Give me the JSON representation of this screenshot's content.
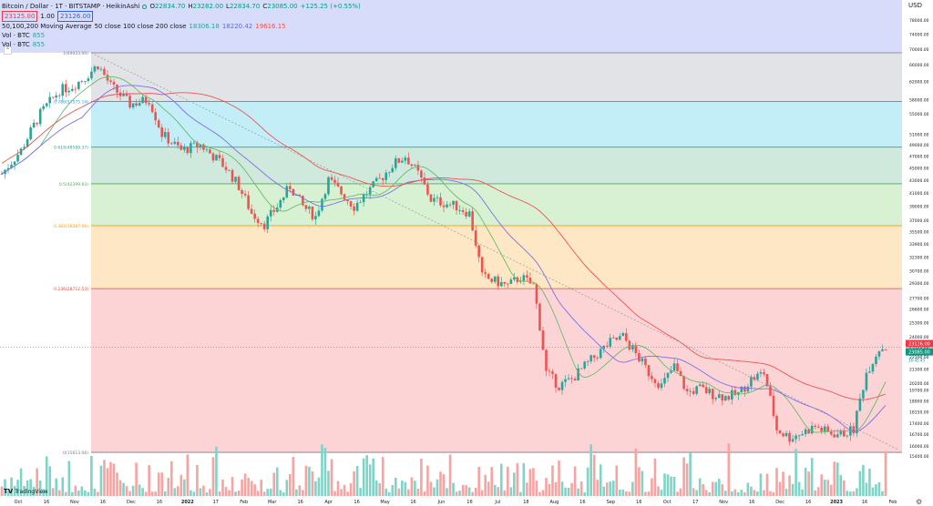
{
  "legend": {
    "symbol": "Bitcoin / Dollar · 1T · BITSTAMP · HeikinAshi",
    "o_label": "O",
    "o_value": "22834.70",
    "h_label": "H",
    "h_value": "23282.00",
    "l_label": "L",
    "l_value": "22834.70",
    "c_label": "C",
    "c_value": "23085.00",
    "change": "+125.25 (+0.55%)",
    "bid": "23125.00",
    "spread": "1.00",
    "ask": "23126.00",
    "ma_name": "50,100,200 Moving Average",
    "ma_params": "50 close 100 close 200 close",
    "ma50": "18306.18",
    "ma100": "18220.42",
    "ma200": "19616.15",
    "vol1_label": "Vol · BTC",
    "vol1_value": "855",
    "vol2_label": "Vol · BTC",
    "vol2_value": "855"
  },
  "currency": "USD",
  "logo_text": "TradingView",
  "fib_labels": [
    {
      "text": "1(69033.00)",
      "level": 69033.0
    },
    {
      "text": "0.786(57575.14)",
      "level": 57575.14
    },
    {
      "text": "0.618(48589.37)",
      "level": 48589.37
    },
    {
      "text": "0.5(42399.63)",
      "level": 42399.63
    },
    {
      "text": "0.382(36287.06)",
      "level": 36287.06
    },
    {
      "text": "0.236(28712.53)",
      "level": 28712.53
    },
    {
      "text": "0(15613.06)",
      "level": 15613.06
    }
  ],
  "price_tags": [
    {
      "text": "23126.00",
      "color": "#f23645"
    },
    {
      "text": "23085.00",
      "color": "#089981"
    }
  ],
  "price_tag_sub": "16:45:43",
  "chart_data": {
    "type": "candlestick",
    "title": "Bitcoin / Dollar · 1T · BITSTAMP · HeikinAshi",
    "ylabel": "USD",
    "y_scale": "log",
    "ylim": [
      15200,
      84000
    ],
    "y_ticks": [
      "USD",
      "78000.00",
      "74000.00",
      "70000.00",
      "66000.00",
      "62000.00",
      "58000.00",
      "55000.00",
      "51000.00",
      "49000.00",
      "47000.00",
      "45000.00",
      "43000.00",
      "41000.00",
      "39000.00",
      "37000.00",
      "35500.00",
      "33900.00",
      "32300.00",
      "30700.00",
      "29300.00",
      "27700.00",
      "26600.00",
      "25300.00",
      "24000.00",
      "23126.00",
      "22300.00",
      "21300.00",
      "20200.00",
      "19700.00",
      "18900.00",
      "18150.00",
      "17400.00",
      "16700.00",
      "16000.00",
      "15400.00",
      "14700.00",
      "13720.00"
    ],
    "x_ticks": [
      "Oct",
      "16",
      "Nov",
      "16",
      "Dec",
      "16",
      "2022",
      "17",
      "Feb",
      "Mar",
      "16",
      "Apr",
      "16",
      "May",
      "16",
      "Jun",
      "16",
      "Jul",
      "18",
      "Aug",
      "16",
      "Sep",
      "16",
      "Oct",
      "17",
      "Nov",
      "16",
      "Dec",
      "16",
      "2023",
      "16",
      "Feb"
    ],
    "series": [
      {
        "name": "BTCUSD",
        "points": [
          [
            0,
            44000
          ],
          [
            6,
            48000
          ],
          [
            12,
            55000
          ],
          [
            18,
            60000
          ],
          [
            22,
            61000
          ],
          [
            26,
            63000
          ],
          [
            30,
            66000
          ],
          [
            34,
            61000
          ],
          [
            40,
            57000
          ],
          [
            46,
            58000
          ],
          [
            50,
            51000
          ],
          [
            56,
            48000
          ],
          [
            62,
            49000
          ],
          [
            66,
            47000
          ],
          [
            70,
            45000
          ],
          [
            74,
            42000
          ],
          [
            78,
            38000
          ],
          [
            82,
            36500
          ],
          [
            86,
            39000
          ],
          [
            90,
            42000
          ],
          [
            94,
            39000
          ],
          [
            98,
            37500
          ],
          [
            102,
            43000
          ],
          [
            106,
            41000
          ],
          [
            110,
            39000
          ],
          [
            114,
            41000
          ],
          [
            118,
            43000
          ],
          [
            122,
            45500
          ],
          [
            126,
            47000
          ],
          [
            130,
            44000
          ],
          [
            134,
            40000
          ],
          [
            138,
            39500
          ],
          [
            142,
            39000
          ],
          [
            146,
            38000
          ],
          [
            150,
            30000
          ],
          [
            154,
            29500
          ],
          [
            158,
            29000
          ],
          [
            162,
            30000
          ],
          [
            166,
            29000
          ],
          [
            170,
            21000
          ],
          [
            174,
            20000
          ],
          [
            178,
            20500
          ],
          [
            182,
            21500
          ],
          [
            186,
            22500
          ],
          [
            190,
            23500
          ],
          [
            194,
            24000
          ],
          [
            198,
            22500
          ],
          [
            202,
            21000
          ],
          [
            206,
            20000
          ],
          [
            210,
            21500
          ],
          [
            214,
            19500
          ],
          [
            218,
            19800
          ],
          [
            222,
            19400
          ],
          [
            226,
            19200
          ],
          [
            230,
            19400
          ],
          [
            234,
            20500
          ],
          [
            238,
            21000
          ],
          [
            242,
            17000
          ],
          [
            246,
            16500
          ],
          [
            250,
            16800
          ],
          [
            254,
            17200
          ],
          [
            258,
            16800
          ],
          [
            262,
            16700
          ],
          [
            266,
            17000
          ],
          [
            270,
            21000
          ],
          [
            274,
            23000
          ],
          [
            276,
            23085
          ]
        ]
      }
    ],
    "moving_averages": [
      {
        "name": "MA50",
        "last": 18306.18
      },
      {
        "name": "MA100",
        "last": 18220.42
      },
      {
        "name": "MA200",
        "last": 19616.15
      }
    ],
    "fibonacci": [
      1,
      0.786,
      0.618,
      0.5,
      0.382,
      0.236,
      0
    ],
    "volume": {
      "label": "Vol · BTC",
      "last": 855
    }
  }
}
